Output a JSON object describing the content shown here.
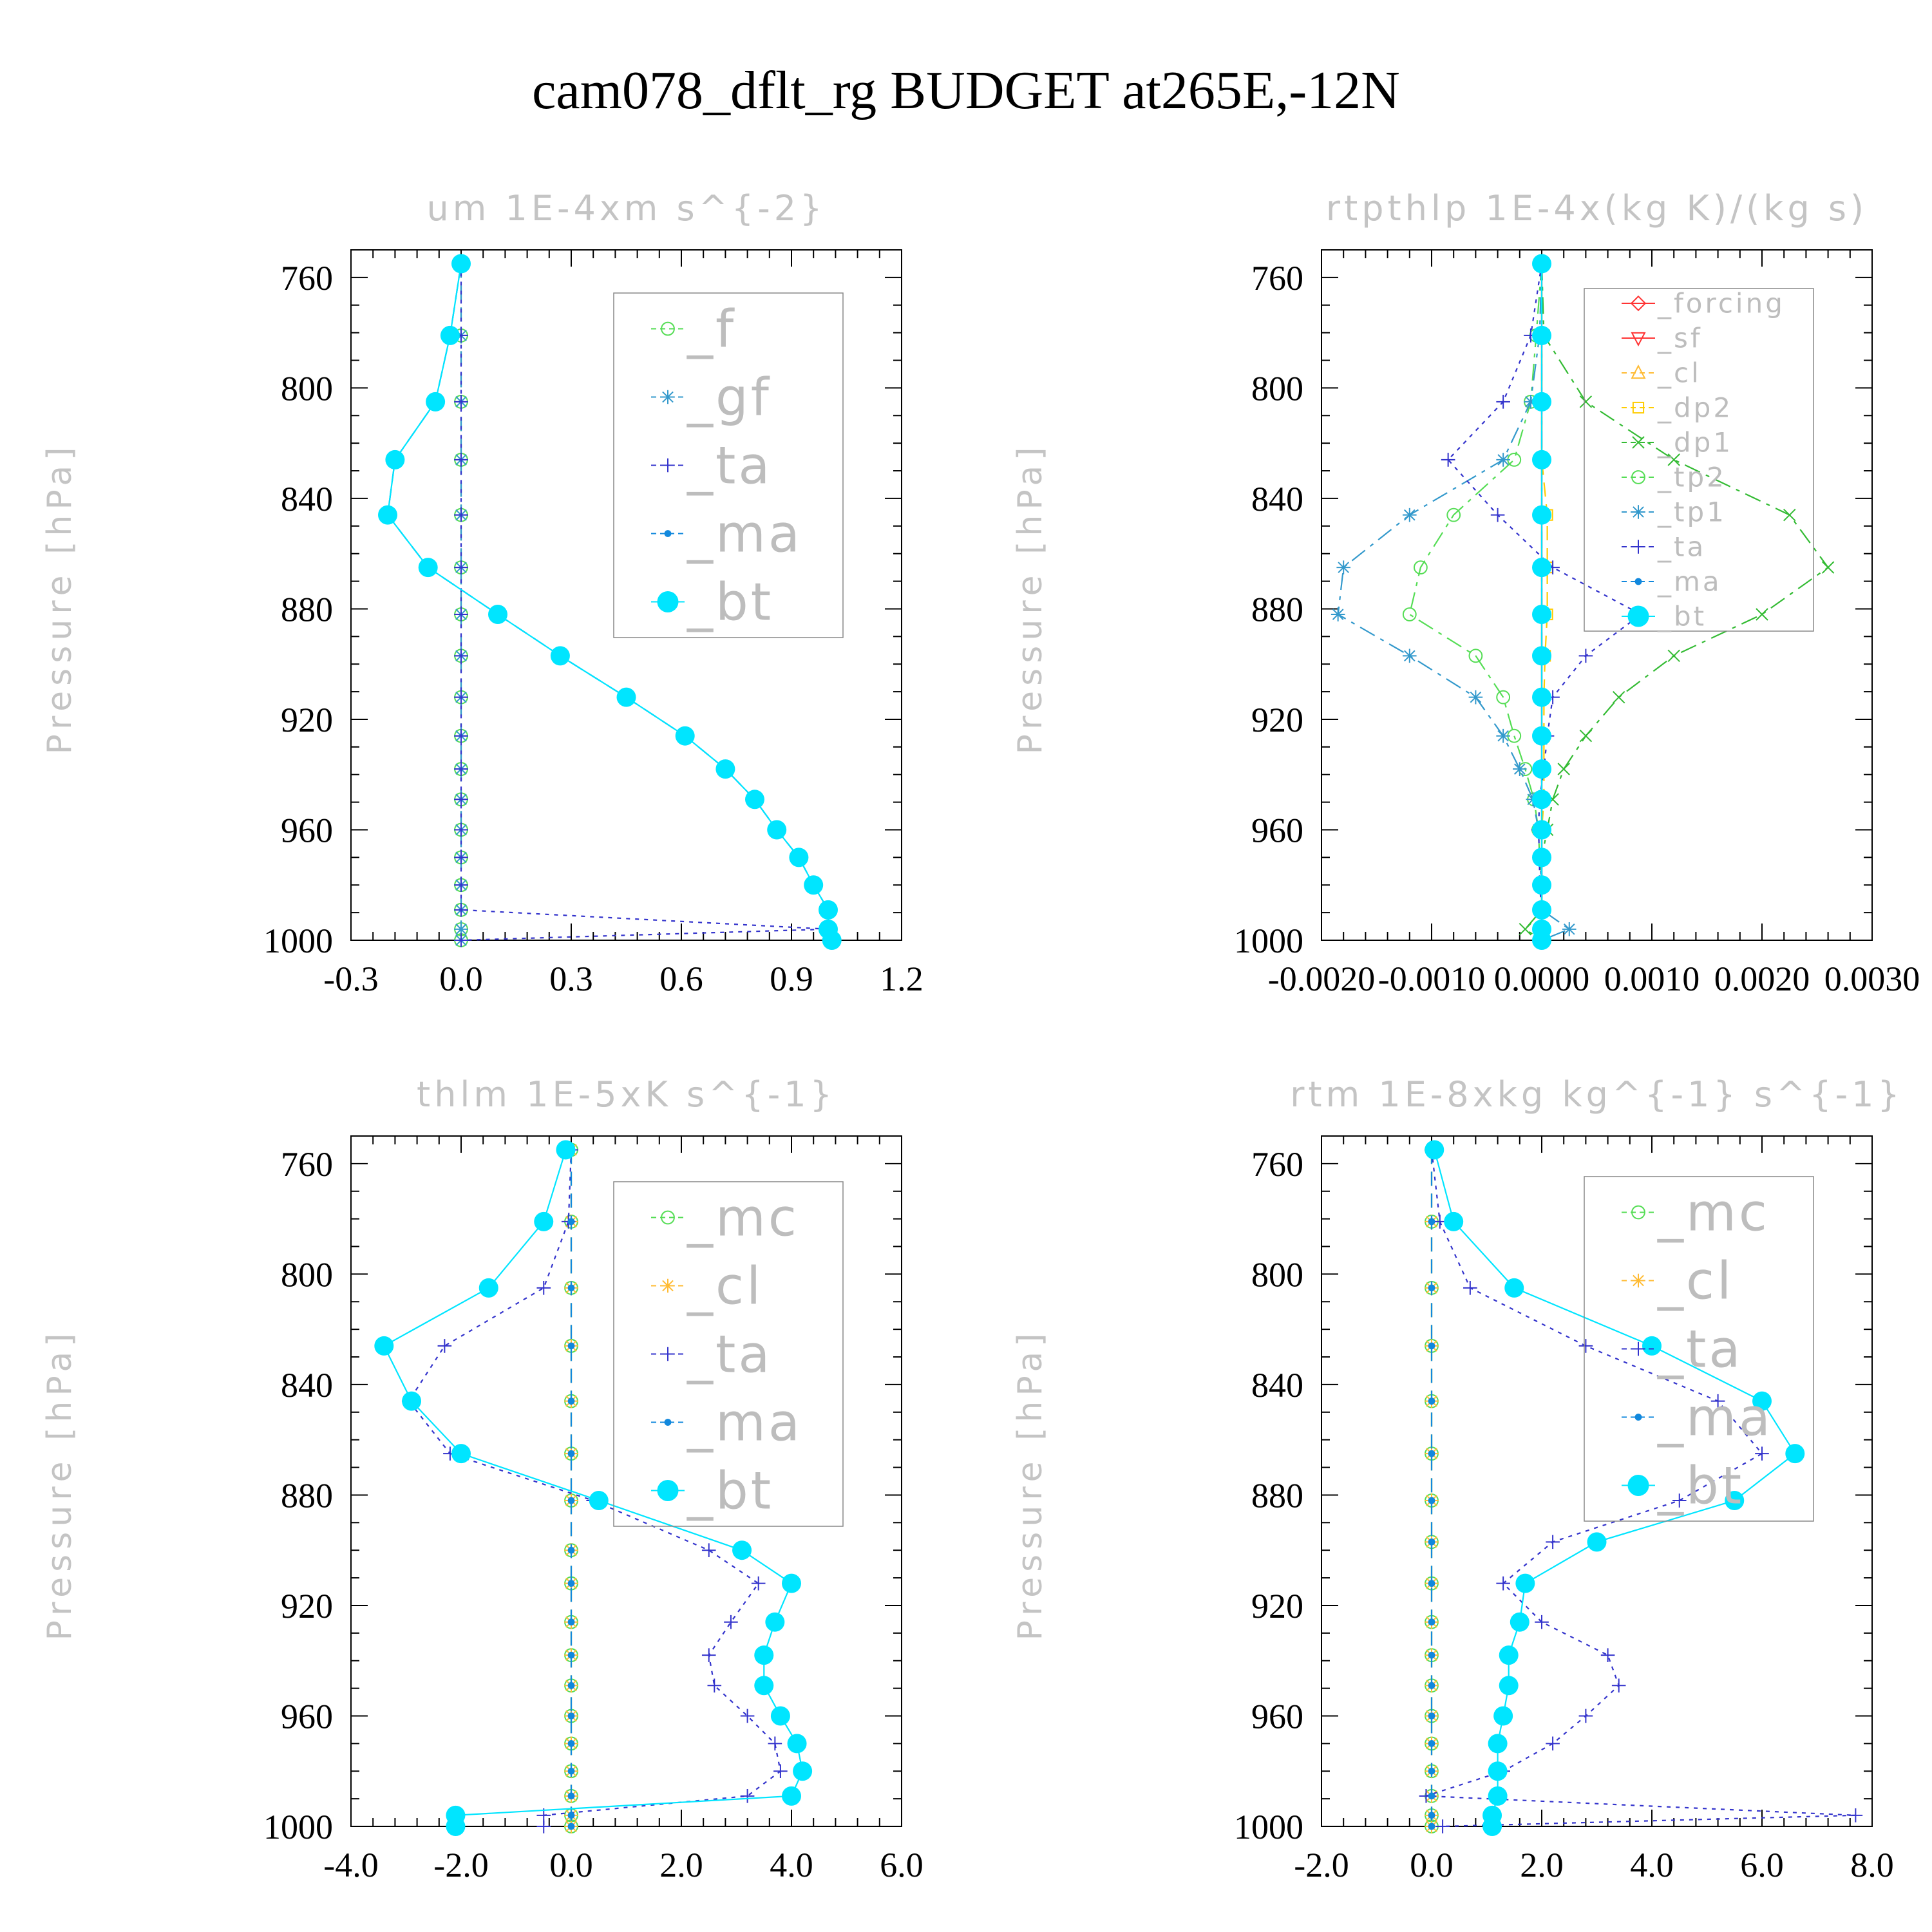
{
  "title": "cam078_dflt_rg  BUDGET at265E,-12N",
  "colors": {
    "_f": "#55dd55",
    "_mc": "#55dd55",
    "_tp2": "#55dd55",
    "_dp1": "#33bb33",
    "_gf": "#3399cc",
    "_cl": "#ffbb33",
    "_tp1": "#3399cc",
    "_ta": "#3333cc",
    "_ma": "#1188dd",
    "_bt": "#00e5ff",
    "_forcing": "#ff3333",
    "_sf": "#ff3333",
    "_dp2": "#ffcc00"
  },
  "chart_data": [
    {
      "type": "line",
      "title": "um  1E-4xm s^{-2}",
      "ylabel": "Pressure [hPa]",
      "xlim": [
        -0.3,
        1.2
      ],
      "ylim": [
        750,
        1000
      ],
      "xticks": [
        "-0.3",
        "0.0",
        "0.3",
        "0.6",
        "0.9",
        "1.2"
      ],
      "yticks": [
        "760",
        "800",
        "840",
        "880",
        "920",
        "960",
        "1000"
      ],
      "legend_position": "top-right",
      "pressure": [
        755,
        781,
        805,
        826,
        846,
        865,
        882,
        897,
        912,
        926,
        938,
        949,
        960,
        970,
        980,
        989,
        996,
        1000
      ],
      "series": [
        {
          "name": "_f",
          "marker": "circle",
          "line": "dashed",
          "values": [
            0,
            0,
            0,
            0,
            0,
            0,
            0,
            0,
            0,
            0,
            0,
            0,
            0,
            0,
            0,
            0,
            0,
            0
          ]
        },
        {
          "name": "_gf",
          "marker": "star",
          "line": "dashed",
          "values": [
            0,
            0,
            0,
            0,
            0,
            0,
            0,
            0,
            0,
            0,
            0,
            0,
            0,
            0,
            0,
            0,
            0,
            0
          ]
        },
        {
          "name": "_ta",
          "marker": "plus",
          "line": "dotted",
          "values": [
            0,
            0,
            0,
            0,
            0,
            0,
            0,
            0,
            0,
            0,
            0,
            0,
            0,
            0,
            0,
            0,
            1.0,
            0
          ]
        },
        {
          "name": "_ma",
          "marker": "dot",
          "line": "dashed",
          "values": [
            0.0,
            -0.03,
            -0.07,
            -0.18,
            -0.2,
            -0.09,
            0.1,
            0.27,
            0.45,
            0.61,
            0.72,
            0.8,
            0.86,
            0.92,
            0.96,
            1.0,
            1.0,
            1.01
          ]
        },
        {
          "name": "_bt",
          "marker": "filled",
          "line": "solid",
          "values": [
            0.0,
            -0.03,
            -0.07,
            -0.18,
            -0.2,
            -0.09,
            0.1,
            0.27,
            0.45,
            0.61,
            0.72,
            0.8,
            0.86,
            0.92,
            0.96,
            1.0,
            1.0,
            1.01
          ]
        }
      ]
    },
    {
      "type": "line",
      "title": "rtpthlp  1E-4x(kg K)/(kg s)",
      "ylabel": "Pressure [hPa]",
      "xlim": [
        -0.002,
        0.003
      ],
      "ylim": [
        750,
        1000
      ],
      "xticks": [
        "-0.0020",
        "-0.0010",
        "0.0000",
        "0.0010",
        "0.0020",
        "0.0030"
      ],
      "yticks": [
        "760",
        "800",
        "840",
        "880",
        "920",
        "960",
        "1000"
      ],
      "legend_position": "top-right",
      "pressure": [
        755,
        781,
        805,
        826,
        846,
        865,
        882,
        897,
        912,
        926,
        938,
        949,
        960,
        970,
        980,
        989,
        996,
        1000
      ],
      "series": [
        {
          "name": "_forcing",
          "marker": "diamond",
          "line": "solid",
          "values": [
            0,
            0,
            0,
            0,
            0,
            0,
            0,
            0,
            0,
            0,
            0,
            0,
            0,
            0,
            0,
            0,
            0,
            0
          ]
        },
        {
          "name": "_sf",
          "marker": "triangle-down",
          "line": "solid",
          "values": [
            0,
            0,
            0,
            0,
            0,
            0,
            0,
            0,
            0,
            0,
            0,
            0,
            0,
            0,
            0,
            0,
            0,
            0
          ]
        },
        {
          "name": "_cl",
          "marker": "triangle",
          "line": "dashed",
          "values": [
            0,
            0,
            0,
            0,
            0,
            0,
            0,
            0,
            0,
            0,
            0,
            0,
            0,
            0,
            0,
            0,
            0,
            0
          ]
        },
        {
          "name": "_dp2",
          "marker": "square",
          "line": "dashed",
          "values": [
            0,
            0,
            0,
            0,
            5e-05,
            5e-05,
            5e-05,
            3e-05,
            2e-05,
            2e-05,
            2e-05,
            2e-05,
            0,
            0,
            0,
            0,
            0,
            0
          ]
        },
        {
          "name": "_dp1",
          "marker": "x",
          "line": "dashdot",
          "values": [
            0,
            2e-05,
            0.0004,
            0.0012,
            0.00225,
            0.0026,
            0.002,
            0.0012,
            0.0007,
            0.0004,
            0.0002,
            0.0001,
            5e-05,
            0,
            0,
            0,
            -0.00015,
            0
          ]
        },
        {
          "name": "_tp2",
          "marker": "circle",
          "line": "dashdot",
          "values": [
            0,
            -5e-05,
            -0.0001,
            -0.00025,
            -0.0008,
            -0.0011,
            -0.0012,
            -0.0006,
            -0.00035,
            -0.00025,
            -0.00015,
            -7e-05,
            -3e-05,
            -2e-05,
            0,
            0,
            0,
            0
          ]
        },
        {
          "name": "_tp1",
          "marker": "star",
          "line": "dashdot",
          "values": [
            0,
            -2e-05,
            -0.0001,
            -0.00035,
            -0.0012,
            -0.0018,
            -0.00185,
            -0.0012,
            -0.0006,
            -0.00035,
            -0.0002,
            -8e-05,
            -3e-05,
            -2e-05,
            0,
            0,
            0.00025,
            0
          ]
        },
        {
          "name": "_ta",
          "marker": "plus",
          "line": "dotted",
          "values": [
            0,
            -0.0001,
            -0.00035,
            -0.00085,
            -0.0004,
            0.0001,
            0.0009,
            0.0004,
            0.0001,
            5e-05,
            2e-05,
            -2e-05,
            -3e-05,
            -2e-05,
            -2e-05,
            0,
            -2e-05,
            0
          ]
        },
        {
          "name": "_ma",
          "marker": "dot",
          "line": "dashdot",
          "values": [
            0,
            0,
            0,
            0,
            0,
            0,
            0,
            0,
            0,
            0,
            0,
            0,
            0,
            0,
            0,
            0,
            0,
            0
          ]
        },
        {
          "name": "_bt",
          "marker": "filled",
          "line": "solid",
          "values": [
            0,
            0,
            0,
            0,
            0,
            0,
            0,
            0,
            0,
            0,
            0,
            0,
            0,
            0,
            0,
            0,
            0,
            0
          ]
        }
      ]
    },
    {
      "type": "line",
      "title": "thlm  1E-5xK s^{-1}",
      "ylabel": "Pressure [hPa]",
      "xlim": [
        -4.0,
        6.0
      ],
      "ylim": [
        750,
        1000
      ],
      "xticks": [
        "-4.0",
        "-2.0",
        "0.0",
        "2.0",
        "4.0",
        "6.0"
      ],
      "yticks": [
        "760",
        "800",
        "840",
        "880",
        "920",
        "960",
        "1000"
      ],
      "legend_position": "top-right",
      "pressure": [
        755,
        781,
        805,
        826,
        846,
        865,
        882,
        900,
        912,
        926,
        938,
        949,
        960,
        970,
        980,
        989,
        996,
        1000
      ],
      "series": [
        {
          "name": "_mc",
          "marker": "circle",
          "line": "dashed",
          "values": [
            0,
            0,
            0,
            0,
            0,
            0,
            0,
            0,
            0,
            0,
            0,
            0,
            0,
            0,
            0,
            0,
            0,
            0
          ]
        },
        {
          "name": "_cl",
          "marker": "star",
          "line": "dashed",
          "values": [
            0,
            0,
            0,
            0,
            0,
            0,
            0,
            0,
            0,
            0,
            0,
            0,
            0,
            0,
            0,
            0,
            0,
            0
          ]
        },
        {
          "name": "_ta",
          "marker": "plus",
          "line": "dotted",
          "values": [
            0.0,
            -0.05,
            -0.5,
            -2.3,
            -2.95,
            -2.2,
            0.4,
            2.5,
            3.4,
            2.9,
            2.5,
            2.6,
            3.2,
            3.7,
            3.8,
            3.2,
            -0.5,
            -0.5
          ]
        },
        {
          "name": "_ma",
          "marker": "dot",
          "line": "dashed",
          "values": [
            0,
            0,
            0,
            0,
            0,
            0,
            0,
            0,
            0,
            0,
            0,
            0,
            0,
            0,
            0,
            0,
            0,
            0
          ]
        },
        {
          "name": "_bt",
          "marker": "filled",
          "line": "solid",
          "values": [
            -0.1,
            -0.5,
            -1.5,
            -3.4,
            -2.9,
            -2.0,
            0.5,
            3.1,
            4.0,
            3.7,
            3.5,
            3.5,
            3.8,
            4.1,
            4.2,
            4.0,
            -2.1,
            -2.1
          ]
        }
      ]
    },
    {
      "type": "line",
      "title": "rtm  1E-8xkg kg^{-1} s^{-1}",
      "ylabel": "Pressure [hPa]",
      "xlim": [
        -2.0,
        8.0
      ],
      "ylim": [
        750,
        1000
      ],
      "xticks": [
        "-2.0",
        "0.0",
        "2.0",
        "4.0",
        "6.0",
        "8.0"
      ],
      "yticks": [
        "760",
        "800",
        "840",
        "880",
        "920",
        "960",
        "1000"
      ],
      "legend_position": "top-right",
      "pressure": [
        755,
        781,
        805,
        826,
        846,
        865,
        882,
        897,
        912,
        926,
        938,
        949,
        960,
        970,
        980,
        989,
        996,
        1000
      ],
      "series": [
        {
          "name": "_mc",
          "marker": "circle",
          "line": "dashed",
          "values": [
            0,
            0,
            0,
            0,
            0,
            0,
            0,
            0,
            0,
            0,
            0,
            0,
            0,
            0,
            0,
            0,
            0,
            0
          ]
        },
        {
          "name": "_cl",
          "marker": "star",
          "line": "dashed",
          "values": [
            0,
            0,
            0,
            0,
            0,
            0,
            0,
            0,
            0,
            0,
            0,
            0,
            0,
            0,
            0,
            0,
            0,
            0
          ]
        },
        {
          "name": "_ta",
          "marker": "plus",
          "line": "dotted",
          "values": [
            0.0,
            0.15,
            0.7,
            2.8,
            5.2,
            6.0,
            4.5,
            2.2,
            1.3,
            2.0,
            3.2,
            3.4,
            2.8,
            2.2,
            1.3,
            -0.1,
            7.7,
            0.2
          ]
        },
        {
          "name": "_ma",
          "marker": "dot",
          "line": "dashed",
          "values": [
            0,
            0,
            0,
            0,
            0,
            0,
            0,
            0,
            0,
            0,
            0,
            0,
            0,
            0,
            0,
            0,
            0,
            0
          ]
        },
        {
          "name": "_bt",
          "marker": "filled",
          "line": "solid",
          "values": [
            0.05,
            0.4,
            1.5,
            4.0,
            6.0,
            6.6,
            5.5,
            3.0,
            1.7,
            1.6,
            1.4,
            1.4,
            1.3,
            1.2,
            1.2,
            1.2,
            1.1,
            1.1
          ]
        }
      ]
    }
  ]
}
